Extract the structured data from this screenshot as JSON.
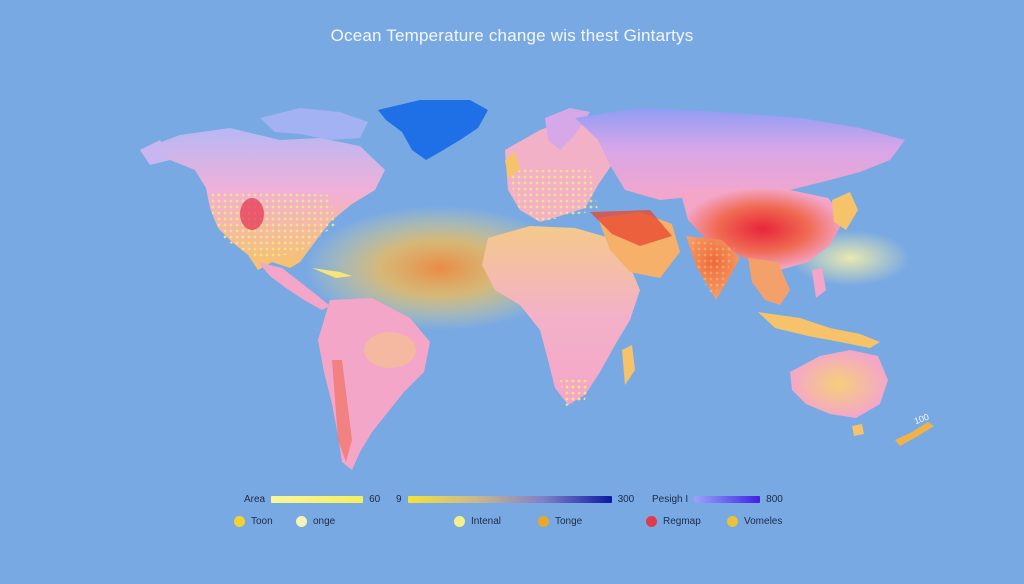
{
  "title": "Ocean Temperature change wis thest Gintartys",
  "map_label": "100",
  "gradient_legends": [
    {
      "label": "Area",
      "value": "60",
      "colors": [
        "#f9f79a",
        "#f3ef5e"
      ]
    },
    {
      "label": "9",
      "value": "300",
      "colors": [
        "#f4e13a",
        "#c9b88c",
        "#7f7fc8",
        "#0b1aa3"
      ]
    },
    {
      "label": "Pesigh I",
      "value": "800",
      "colors": [
        "#9aa4f6",
        "#6b63ee",
        "#3f1fe6"
      ]
    }
  ],
  "dot_legends": [
    {
      "label": "Toon",
      "color": "#f2d22b"
    },
    {
      "label": "onge",
      "color": "#f5f3b8"
    },
    {
      "label": "Intenal",
      "color": "#f6f08a"
    },
    {
      "label": "Tonge",
      "color": "#e9a82c"
    },
    {
      "label": "Regmap",
      "color": "#e23a4a"
    },
    {
      "label": "Vomeles",
      "color": "#e9c13a"
    }
  ],
  "colors": {
    "ocean": "#79a9e3",
    "heat_high": "#e63a3a",
    "heat_mid": "#f2a04a",
    "heat_low": "#f7e57a",
    "land_pink": "#f4a6c9",
    "cold": "#8f9df5",
    "greenland": "#1f6fe6"
  }
}
